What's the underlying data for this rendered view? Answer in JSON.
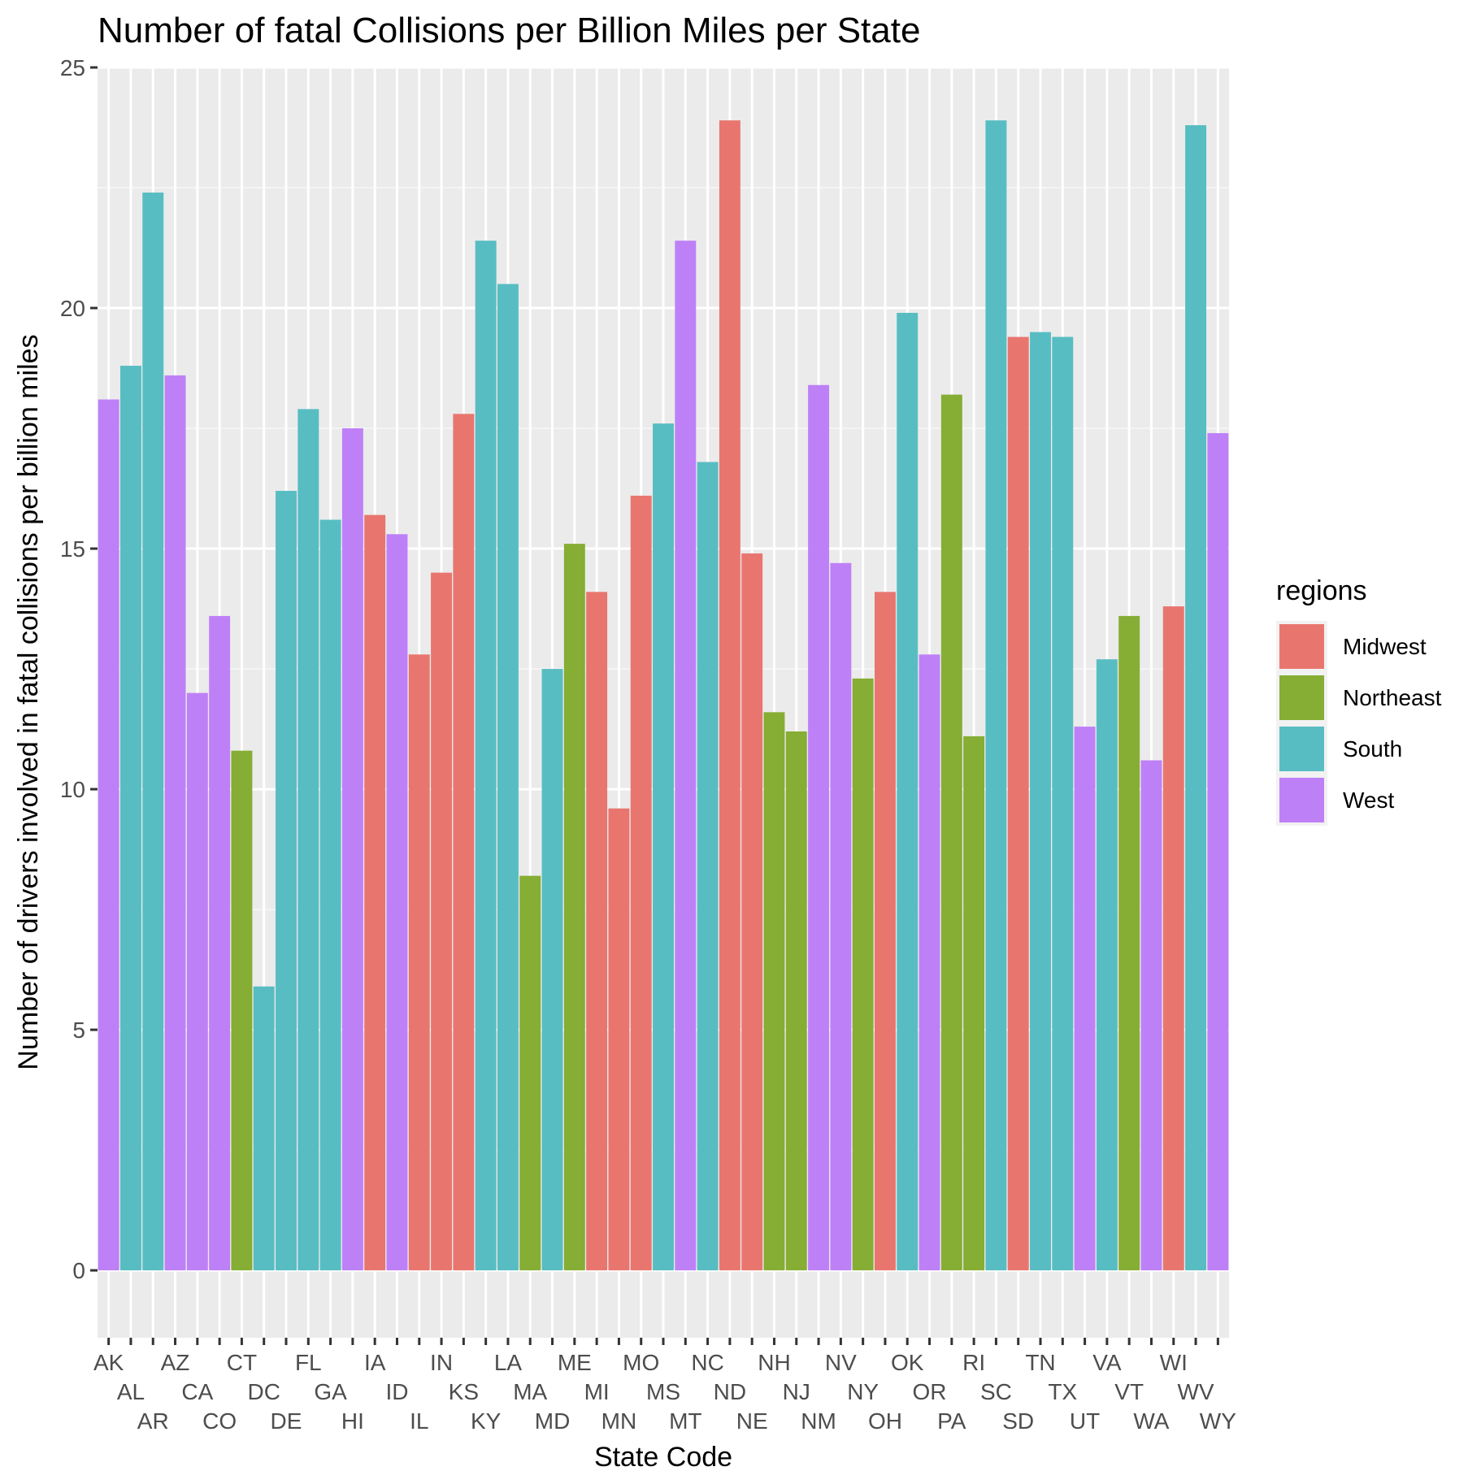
{
  "chart_data": {
    "type": "bar",
    "title": "Number of fatal Collisions per Billion Miles per State",
    "xlabel": "State Code",
    "ylabel": "Number of drivers involved in fatal collisions per billion miles",
    "ylim": [
      -1.4,
      25
    ],
    "yticks": [
      0,
      5,
      10,
      15,
      20,
      25
    ],
    "grid": true,
    "legend": {
      "title": "regions",
      "position": "right",
      "entries": [
        {
          "name": "Midwest",
          "color": "#E8766F"
        },
        {
          "name": "Northeast",
          "color": "#86AD34"
        },
        {
          "name": "South",
          "color": "#58BDC2"
        },
        {
          "name": "West",
          "color": "#BE80F7"
        }
      ]
    },
    "categories": [
      "AK",
      "AL",
      "AR",
      "AZ",
      "CA",
      "CO",
      "CT",
      "DC",
      "DE",
      "FL",
      "GA",
      "HI",
      "IA",
      "ID",
      "IL",
      "IN",
      "KS",
      "KY",
      "LA",
      "MA",
      "MD",
      "ME",
      "MI",
      "MN",
      "MO",
      "MS",
      "MT",
      "NC",
      "ND",
      "NE",
      "NH",
      "NJ",
      "NM",
      "NV",
      "NY",
      "OH",
      "OK",
      "OR",
      "PA",
      "RI",
      "SC",
      "SD",
      "TN",
      "TX",
      "UT",
      "VA",
      "VT",
      "WA",
      "WI",
      "WV",
      "WY"
    ],
    "values": [
      18.1,
      18.8,
      22.4,
      18.6,
      12.0,
      13.6,
      10.8,
      5.9,
      16.2,
      17.9,
      15.6,
      17.5,
      15.7,
      15.3,
      12.8,
      14.5,
      17.8,
      21.4,
      20.5,
      8.2,
      12.5,
      15.1,
      14.1,
      9.6,
      16.1,
      17.6,
      21.4,
      16.8,
      23.9,
      14.9,
      11.6,
      11.2,
      18.4,
      14.7,
      12.3,
      14.1,
      19.9,
      12.8,
      18.2,
      11.1,
      23.9,
      19.4,
      19.5,
      19.4,
      11.3,
      12.7,
      13.6,
      10.6,
      13.8,
      23.8,
      17.4
    ],
    "regions": [
      "West",
      "South",
      "South",
      "West",
      "West",
      "West",
      "Northeast",
      "South",
      "South",
      "South",
      "South",
      "West",
      "Midwest",
      "West",
      "Midwest",
      "Midwest",
      "Midwest",
      "South",
      "South",
      "Northeast",
      "South",
      "Northeast",
      "Midwest",
      "Midwest",
      "Midwest",
      "South",
      "West",
      "South",
      "Midwest",
      "Midwest",
      "Northeast",
      "Northeast",
      "West",
      "West",
      "Northeast",
      "Midwest",
      "South",
      "West",
      "Northeast",
      "Northeast",
      "South",
      "Midwest",
      "South",
      "South",
      "West",
      "South",
      "Northeast",
      "West",
      "Midwest",
      "South",
      "West"
    ]
  }
}
